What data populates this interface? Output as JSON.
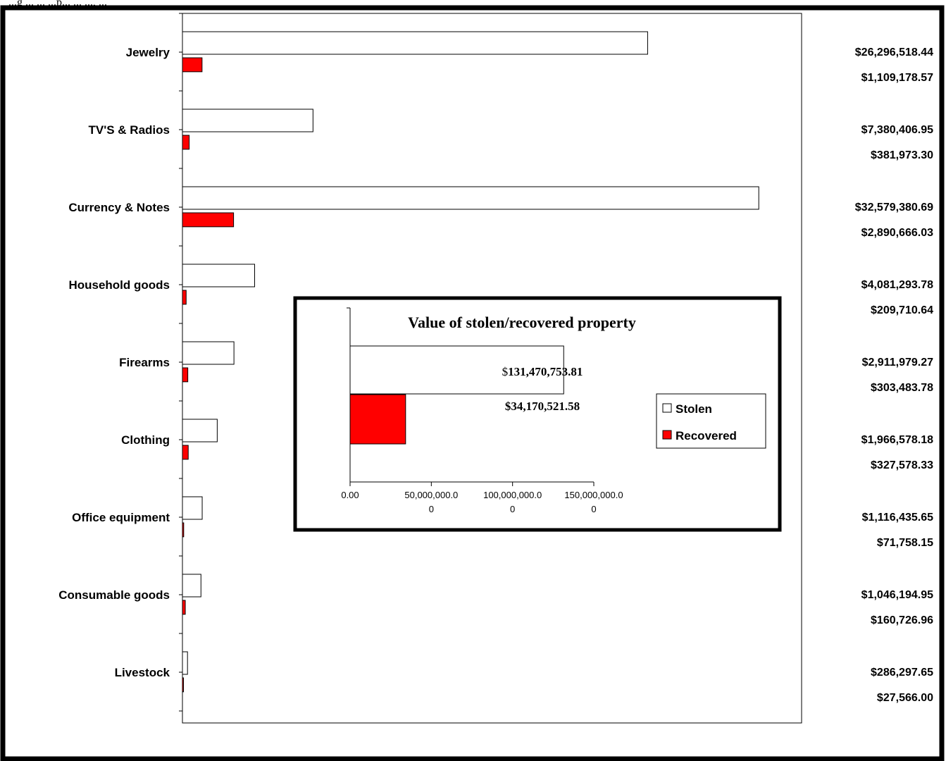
{
  "caption_fragment": "...g ... ... ...p... ... ..., ...",
  "chart_data": [
    {
      "type": "bar",
      "orientation": "horizontal",
      "categories": [
        "Jewelry",
        "TV'S & Radios",
        "Currency & Notes",
        "Household goods",
        "Firearms",
        "Clothing",
        "Office equipment",
        "Consumable goods",
        "Livestock"
      ],
      "series": [
        {
          "name": "Stolen",
          "color": "#ffffff",
          "values": [
            26296518.44,
            7380406.95,
            32579380.69,
            4081293.78,
            2911979.27,
            1966578.18,
            1116435.65,
            1046194.95,
            286297.65
          ],
          "labels": [
            "$26,296,518.44",
            "$7,380,406.95",
            "$32,579,380.69",
            "$4,081,293.78",
            "$2,911,979.27",
            "$1,966,578.18",
            "$1,116,435.65",
            "$1,046,194.95",
            "$286,297.65"
          ]
        },
        {
          "name": "Recovered",
          "color": "#ff0000",
          "values": [
            1109178.57,
            381973.3,
            2890666.03,
            209710.64,
            303483.78,
            327578.33,
            71758.15,
            160726.96,
            27566.0
          ],
          "labels": [
            "$1,109,178.57",
            "$381,973.30",
            "$2,890,666.03",
            "$209,710.64",
            "$303,483.78",
            "$327,578.33",
            "$71,758.15",
            "$160,726.96",
            "$27,566.00"
          ]
        }
      ],
      "xlim": [
        0,
        35000000
      ],
      "grid": false
    },
    {
      "type": "bar",
      "orientation": "horizontal",
      "title": "Value of stolen/recovered property",
      "series": [
        {
          "name": "Stolen",
          "color": "#ffffff",
          "value": 131470753.81,
          "label_prefix": "$",
          "label_main": "131,470,753.81"
        },
        {
          "name": "Recovered",
          "color": "#ff0000",
          "value": 34170521.58,
          "label": "$34,170,521.58"
        }
      ],
      "xlim": [
        0,
        150000000
      ],
      "ticks": [
        {
          "value": 0,
          "line1": "0.00",
          "line2": ""
        },
        {
          "value": 50000000,
          "line1": "50,000,000.0",
          "line2": "0"
        },
        {
          "value": 100000000,
          "line1": "100,000,000.0",
          "line2": "0"
        },
        {
          "value": 150000000,
          "line1": "150,000,000.0",
          "line2": "0"
        }
      ],
      "legend": {
        "placement": "right",
        "entries": [
          "Stolen",
          "Recovered"
        ]
      }
    }
  ]
}
